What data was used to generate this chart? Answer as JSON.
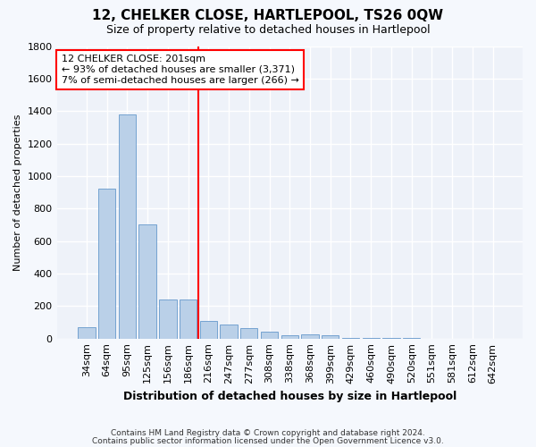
{
  "title": "12, CHELKER CLOSE, HARTLEPOOL, TS26 0QW",
  "subtitle": "Size of property relative to detached houses in Hartlepool",
  "xlabel": "Distribution of detached houses by size in Hartlepool",
  "ylabel": "Number of detached properties",
  "categories": [
    "34sqm",
    "64sqm",
    "95sqm",
    "125sqm",
    "156sqm",
    "186sqm",
    "216sqm",
    "247sqm",
    "277sqm",
    "308sqm",
    "338sqm",
    "368sqm",
    "399sqm",
    "429sqm",
    "460sqm",
    "490sqm",
    "520sqm",
    "551sqm",
    "581sqm",
    "612sqm",
    "642sqm"
  ],
  "values": [
    70,
    920,
    1380,
    700,
    240,
    240,
    110,
    85,
    65,
    40,
    20,
    25,
    20,
    5,
    5,
    5,
    5,
    0,
    0,
    0,
    0
  ],
  "bar_color": "#bad0e8",
  "bar_edge_color": "#6699cc",
  "red_line_x": 5.5,
  "annotation_line1": "12 CHELKER CLOSE: 201sqm",
  "annotation_line2": "← 93% of detached houses are smaller (3,371)",
  "annotation_line3": "7% of semi-detached houses are larger (266) →",
  "ylim": [
    0,
    1800
  ],
  "yticks": [
    0,
    200,
    400,
    600,
    800,
    1000,
    1200,
    1400,
    1600,
    1800
  ],
  "footer1": "Contains HM Land Registry data © Crown copyright and database right 2024.",
  "footer2": "Contains public sector information licensed under the Open Government Licence v3.0.",
  "bg_color": "#f5f8fd",
  "plot_bg_color": "#eef2f9",
  "grid_color": "#ffffff",
  "title_fontsize": 11,
  "subtitle_fontsize": 9,
  "ylabel_fontsize": 8,
  "xlabel_fontsize": 9,
  "tick_fontsize": 8,
  "annot_fontsize": 8
}
